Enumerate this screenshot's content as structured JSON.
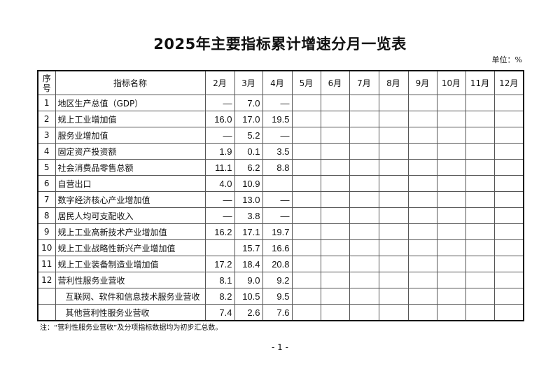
{
  "title": "2025年主要指标累计增速分月一览表",
  "unit": "单位：%",
  "table": {
    "headers": [
      "序号",
      "指标名称",
      "2月",
      "3月",
      "4月",
      "5月",
      "6月",
      "7月",
      "8月",
      "9月",
      "10月",
      "11月",
      "12月"
    ],
    "rows": [
      {
        "seq": "1",
        "name": "地区生产总值（GDP）",
        "values": [
          "—",
          "7.0",
          "—",
          "",
          "",
          "",
          "",
          "",
          "",
          "",
          ""
        ]
      },
      {
        "seq": "2",
        "name": "规上工业增加值",
        "values": [
          "16.0",
          "17.0",
          "19.5",
          "",
          "",
          "",
          "",
          "",
          "",
          "",
          ""
        ]
      },
      {
        "seq": "3",
        "name": "服务业增加值",
        "values": [
          "—",
          "5.2",
          "—",
          "",
          "",
          "",
          "",
          "",
          "",
          "",
          ""
        ]
      },
      {
        "seq": "4",
        "name": "固定资产投资额",
        "values": [
          "1.9",
          "0.1",
          "3.5",
          "",
          "",
          "",
          "",
          "",
          "",
          "",
          ""
        ]
      },
      {
        "seq": "5",
        "name": "社会消费品零售总额",
        "values": [
          "11.1",
          "6.2",
          "8.8",
          "",
          "",
          "",
          "",
          "",
          "",
          "",
          ""
        ]
      },
      {
        "seq": "6",
        "name": "自营出口",
        "values": [
          "4.0",
          "10.9",
          "",
          "",
          "",
          "",
          "",
          "",
          "",
          "",
          ""
        ]
      },
      {
        "seq": "7",
        "name": "数字经济核心产业增加值",
        "values": [
          "—",
          "13.0",
          "—",
          "",
          "",
          "",
          "",
          "",
          "",
          "",
          ""
        ]
      },
      {
        "seq": "8",
        "name": "居民人均可支配收入",
        "values": [
          "—",
          "3.8",
          "—",
          "",
          "",
          "",
          "",
          "",
          "",
          "",
          ""
        ]
      },
      {
        "seq": "9",
        "name": "规上工业高新技术产业增加值",
        "values": [
          "16.2",
          "17.1",
          "19.7",
          "",
          "",
          "",
          "",
          "",
          "",
          "",
          ""
        ]
      },
      {
        "seq": "10",
        "name": "规上工业战略性新兴产业增加值",
        "values": [
          "",
          "15.7",
          "16.6",
          "",
          "",
          "",
          "",
          "",
          "",
          "",
          ""
        ]
      },
      {
        "seq": "11",
        "name": "规上工业装备制造业增加值",
        "values": [
          "17.2",
          "18.4",
          "20.8",
          "",
          "",
          "",
          "",
          "",
          "",
          "",
          ""
        ]
      },
      {
        "seq": "12",
        "name": "营利性服务业营收",
        "values": [
          "8.1",
          "9.0",
          "9.2",
          "",
          "",
          "",
          "",
          "",
          "",
          "",
          ""
        ]
      },
      {
        "seq": "",
        "name": "互联网、软件和信息技术服务业营收",
        "sub": true,
        "values": [
          "8.2",
          "10.5",
          "9.5",
          "",
          "",
          "",
          "",
          "",
          "",
          "",
          ""
        ]
      },
      {
        "seq": "",
        "name": "其他营利性服务业营收",
        "sub": true,
        "values": [
          "7.4",
          "2.6",
          "7.6",
          "",
          "",
          "",
          "",
          "",
          "",
          "",
          ""
        ]
      }
    ]
  },
  "note": "注：“营利性服务业营收”及分项指标数据均为初步汇总数。",
  "page_number": "- 1 -"
}
